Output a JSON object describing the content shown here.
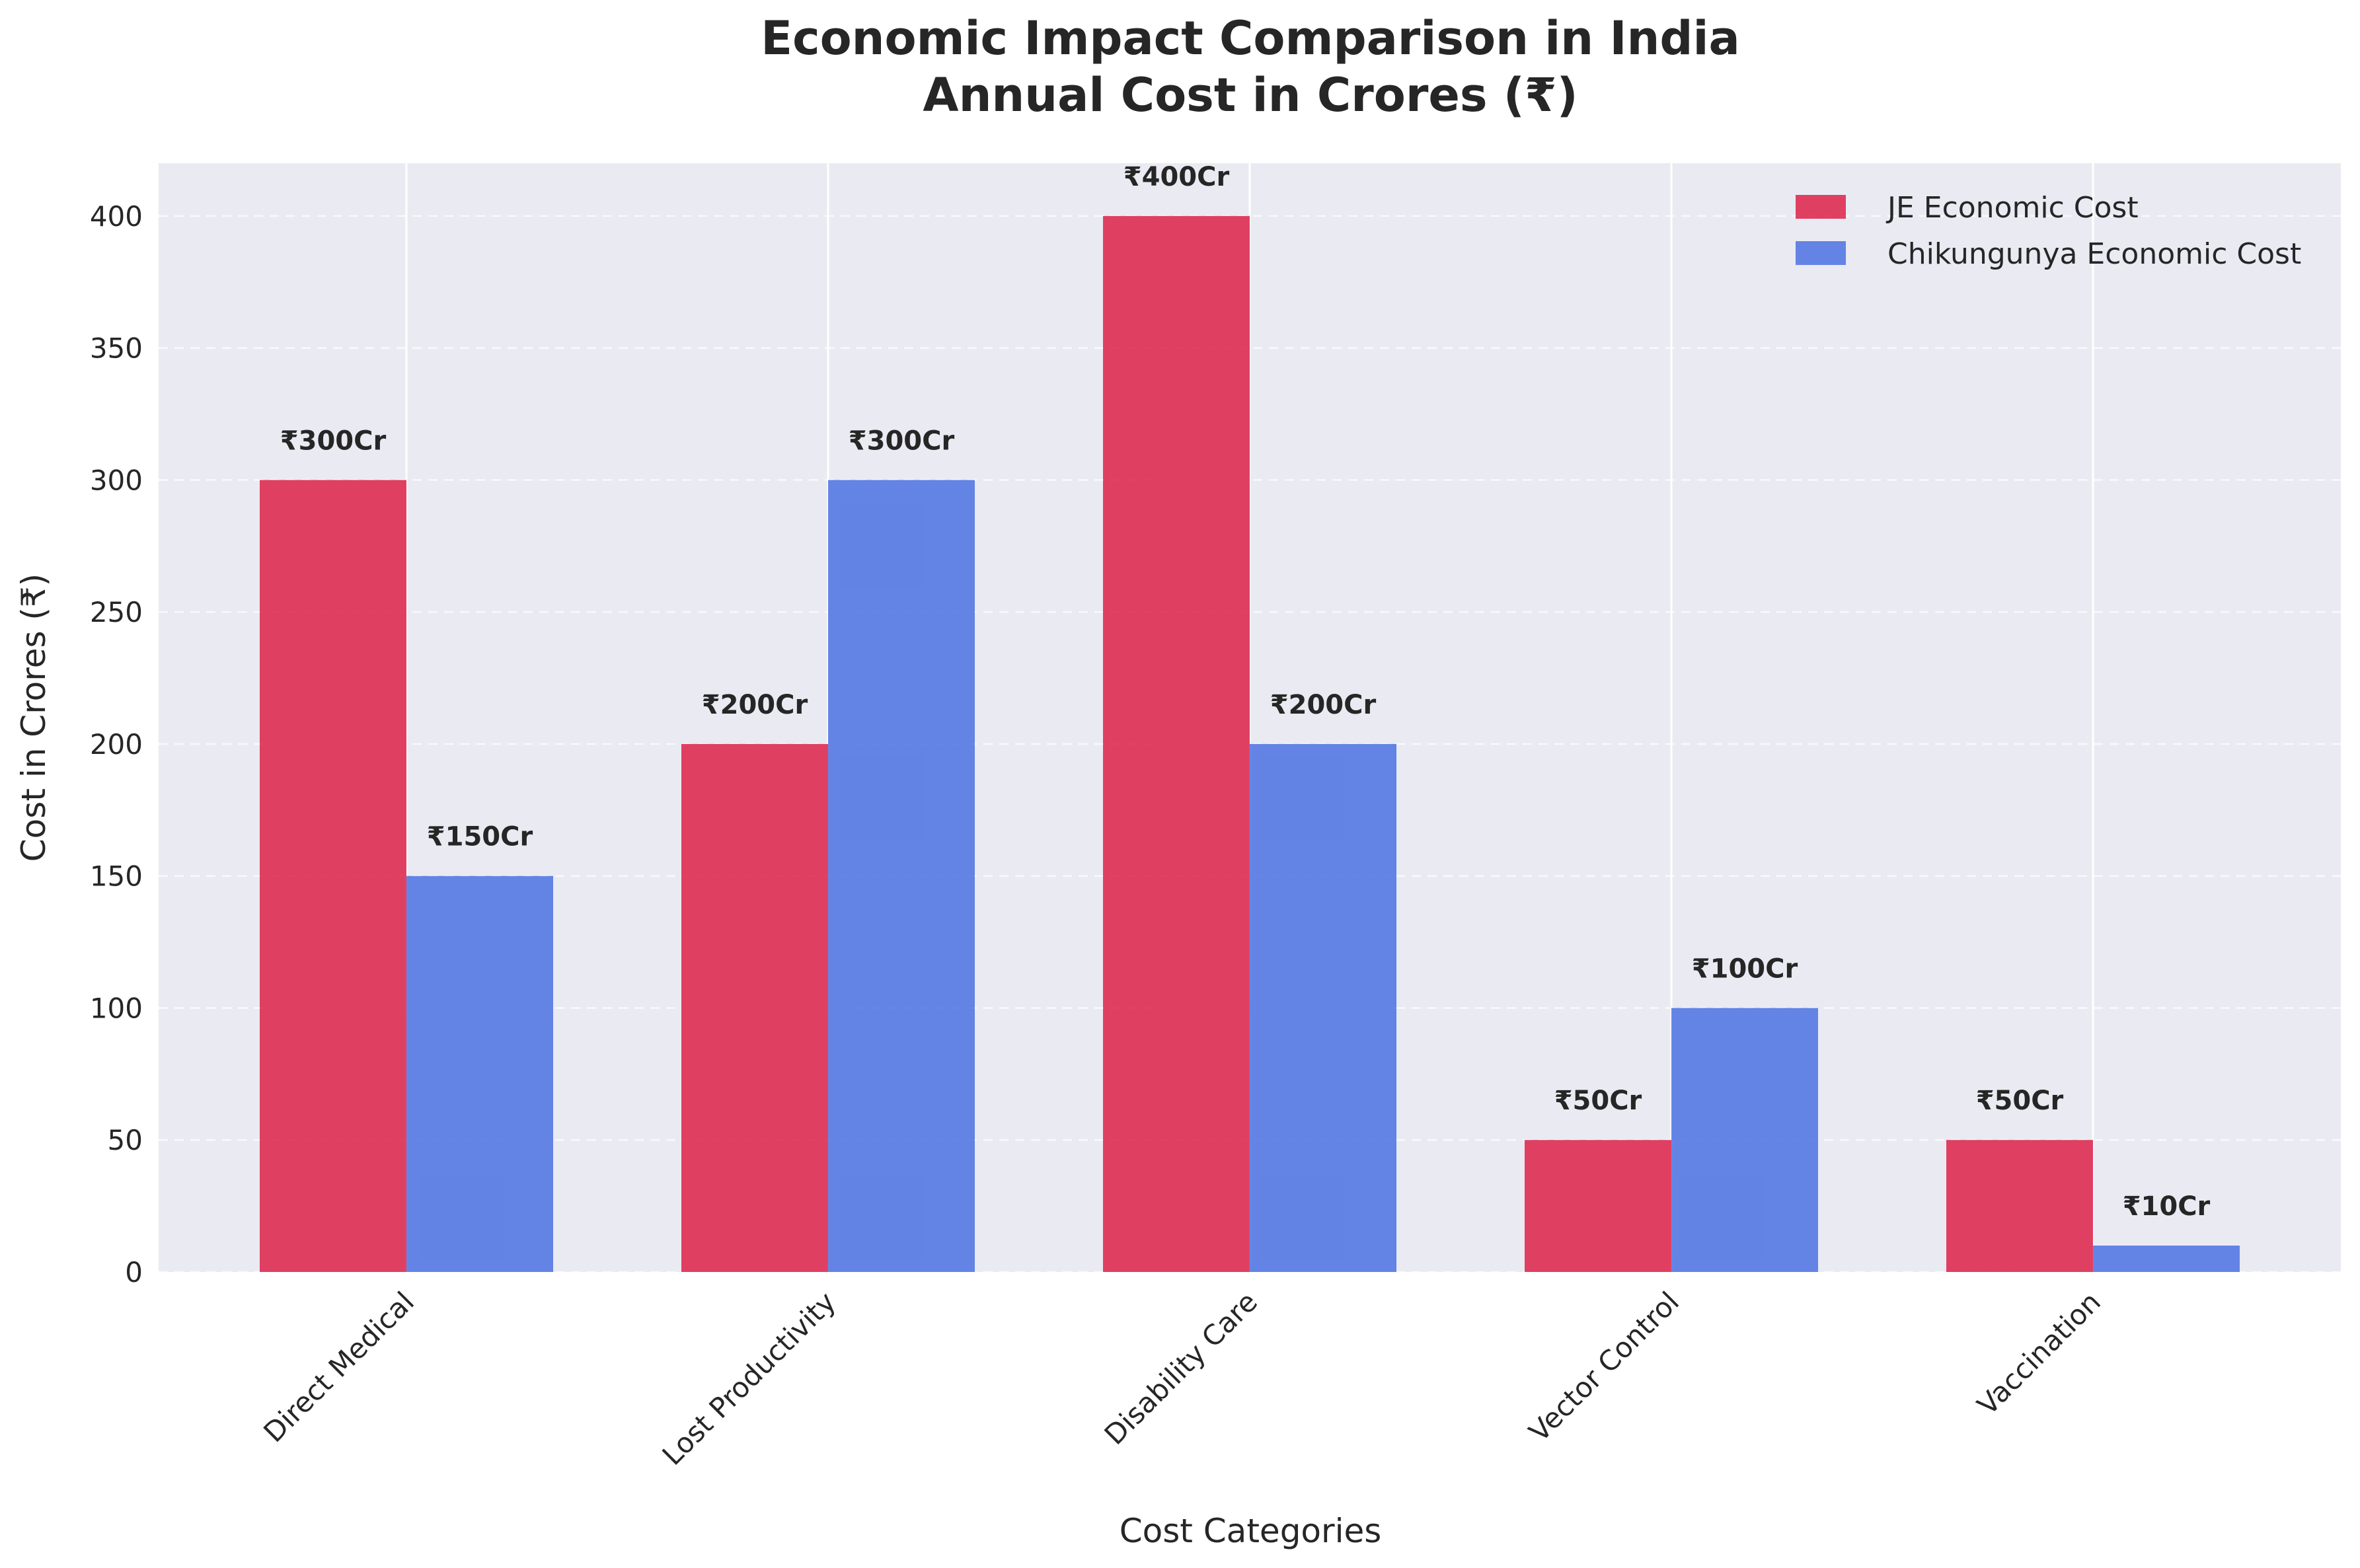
{
  "chart_data": {
    "type": "bar",
    "title": "Economic Impact Comparison in India",
    "subtitle": "Annual Cost in Crores (₹)",
    "xlabel": "Cost Categories",
    "ylabel": "Cost in Crores (₹)",
    "categories": [
      "Direct Medical",
      "Lost Productivity",
      "Disability Care",
      "Vector Control",
      "Vaccination"
    ],
    "series": [
      {
        "name": "JE Economic Cost",
        "values": [
          300,
          200,
          400,
          50,
          50
        ],
        "color": "#DC143C"
      },
      {
        "name": "Chikungunya Economic Cost",
        "values": [
          150,
          300,
          200,
          100,
          10
        ],
        "color": "#4169E1"
      }
    ],
    "data_labels": [
      [
        "₹300Cr",
        "₹200Cr",
        "₹400Cr",
        "₹50Cr",
        "₹50Cr"
      ],
      [
        "₹150Cr",
        "₹300Cr",
        "₹200Cr",
        "₹100Cr",
        "₹10Cr"
      ]
    ],
    "yticks": [
      "0",
      "50",
      "100",
      "150",
      "200",
      "250",
      "300",
      "350",
      "400"
    ],
    "ytick_values": [
      0,
      50,
      100,
      150,
      200,
      250,
      300,
      350,
      400
    ],
    "ylim": [
      0,
      420
    ],
    "grid": true,
    "legend_position": "top-right",
    "plot_background": "#EAEAF2"
  }
}
